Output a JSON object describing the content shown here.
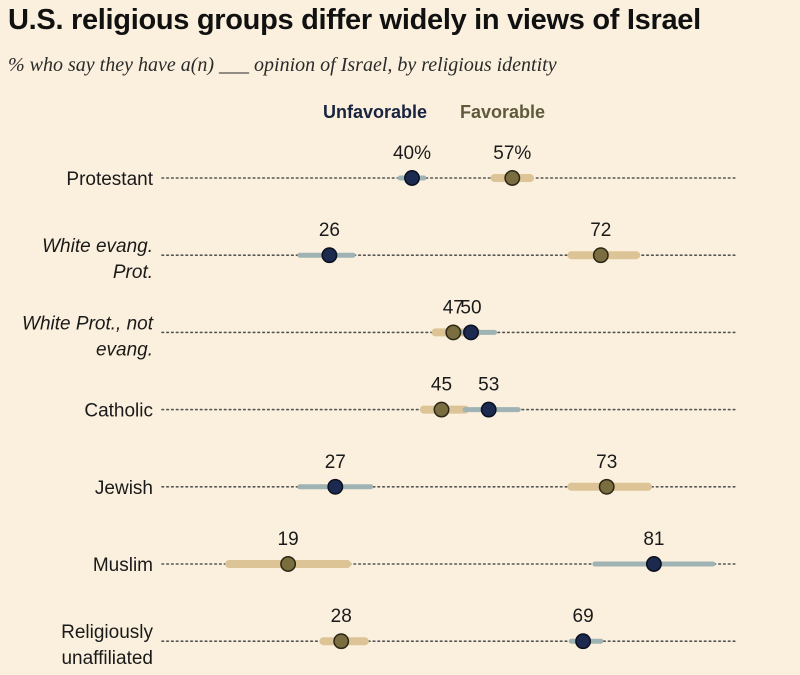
{
  "title": "U.S. religious groups differ widely in views of Israel",
  "subtitle": "% who say they have a(n) ___ opinion of Israel, by religious identity",
  "chart_data": {
    "type": "dot-range",
    "title": "U.S. religious groups differ widely in views of Israel",
    "subtitle": "% who say they have a(n) ___ opinion of Israel, by religious identity",
    "legend": [
      "Unfavorable",
      "Favorable"
    ],
    "series": [
      {
        "name": "Unfavorable",
        "color": "#1b2a4e",
        "bar_color": "#9fb2b4"
      },
      {
        "name": "Favorable",
        "color": "#7a6d3f",
        "bar_color": "#dcc497"
      }
    ],
    "xlim": [
      0,
      100
    ],
    "categories": [
      {
        "label_lines": [
          "Protestant"
        ],
        "italic": false,
        "unfavorable": 40,
        "unfavorable_label": "40%",
        "unfavorable_range": [
          38,
          42
        ],
        "favorable": 57,
        "favorable_label": "57%",
        "favorable_range": [
          54,
          60
        ]
      },
      {
        "label_lines": [
          "White evang.",
          "Prot."
        ],
        "italic": true,
        "unfavorable": 26,
        "unfavorable_label": "26",
        "unfavorable_range": [
          21,
          30
        ],
        "favorable": 72,
        "favorable_label": "72",
        "favorable_range": [
          67,
          78
        ]
      },
      {
        "label_lines": [
          "White Prot., not",
          "evang."
        ],
        "italic": true,
        "unfavorable": 50,
        "unfavorable_label": "50",
        "unfavorable_range": [
          47,
          54
        ],
        "favorable": 47,
        "favorable_label": "47",
        "favorable_range": [
          44,
          51
        ]
      },
      {
        "label_lines": [
          "Catholic"
        ],
        "italic": false,
        "unfavorable": 53,
        "unfavorable_label": "53",
        "unfavorable_range": [
          49,
          58
        ],
        "favorable": 45,
        "favorable_label": "45",
        "favorable_range": [
          42,
          49
        ]
      },
      {
        "label_lines": [
          "Jewish"
        ],
        "italic": false,
        "unfavorable": 27,
        "unfavorable_label": "27",
        "unfavorable_range": [
          21,
          33
        ],
        "favorable": 73,
        "favorable_label": "73",
        "favorable_range": [
          67,
          80
        ]
      },
      {
        "label_lines": [
          "Muslim"
        ],
        "italic": false,
        "unfavorable": 81,
        "unfavorable_label": "81",
        "unfavorable_range": [
          71,
          91
        ],
        "favorable": 19,
        "favorable_label": "19",
        "favorable_range": [
          9,
          29
        ]
      },
      {
        "label_lines": [
          "Religiously",
          "unaffiliated"
        ],
        "italic": false,
        "unfavorable": 69,
        "unfavorable_label": "69",
        "unfavorable_range": [
          67,
          72
        ],
        "favorable": 28,
        "favorable_label": "28",
        "favorable_range": [
          25,
          32
        ]
      }
    ]
  }
}
